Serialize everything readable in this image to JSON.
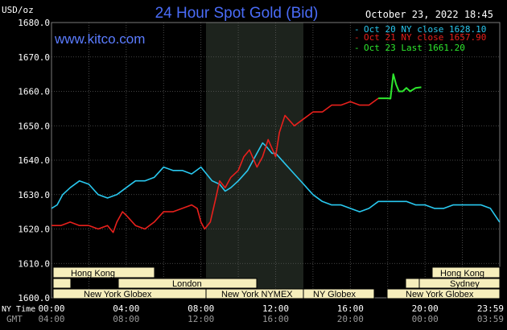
{
  "header": {
    "title": "24 Hour Spot Gold (Bid)",
    "unit": "USD/oz",
    "timestamp": "October 23, 2022 18:45",
    "site": "www.kitco.com"
  },
  "legend": [
    {
      "label": "Oct 20 NY close 1628.10",
      "color": "#29c8ef"
    },
    {
      "label": "Oct 21 NY close 1657.90",
      "color": "#e8201c"
    },
    {
      "label": "Oct 23 Last 1661.20",
      "color": "#2ee82e"
    }
  ],
  "x_axis": {
    "row1_label": "NY Time",
    "row2_label": "GMT",
    "ny_ticks": [
      "00:00",
      "04:00",
      "08:00",
      "12:00",
      "16:00",
      "20:00",
      "23:59"
    ],
    "gmt_ticks": [
      "04:00",
      "08:00",
      "12:00",
      "16:00",
      "20:00",
      "00:00",
      "03:59"
    ]
  },
  "y_axis": {
    "ticks": [
      "1680.0",
      "1670.0",
      "1660.0",
      "1650.0",
      "1640.0",
      "1630.0",
      "1620.0",
      "1610.0",
      "1600.0"
    ]
  },
  "markets": [
    {
      "label": "Hong Kong",
      "row": 1
    },
    {
      "label": "London",
      "row": 2
    },
    {
      "label": "New York Globex",
      "row": 3
    },
    {
      "label": "New York NYMEX",
      "row": 3
    },
    {
      "label": "NY Globex",
      "row": 3
    },
    {
      "label": "Hong Kong",
      "row": 1
    },
    {
      "label": "Sydney",
      "row": 2
    },
    {
      "label": "New York Globex",
      "row": 3
    }
  ],
  "colors": {
    "background": "#000000",
    "grid": "#5a5a5a",
    "shade": "#1d231d",
    "market_bar": "#f6eebc",
    "title": "#4a6cf7"
  },
  "chart_data": {
    "type": "line",
    "title": "24 Hour Spot Gold (Bid)",
    "ylabel": "USD/oz",
    "ylim": [
      1600,
      1680
    ],
    "xlim_hours": [
      0,
      24
    ],
    "x_unit": "hours (NY time)",
    "grid": true,
    "legend_position": "top-right",
    "series": [
      {
        "name": "Oct 20 NY close 1628.10",
        "color": "#29c8ef",
        "x": [
          0,
          0.3,
          0.6,
          1.0,
          1.5,
          2.0,
          2.5,
          3.0,
          3.5,
          4.0,
          4.5,
          5.0,
          5.5,
          6.0,
          6.5,
          7.0,
          7.5,
          8.0,
          8.3,
          8.6,
          9.0,
          9.3,
          9.6,
          10.0,
          10.5,
          11.0,
          11.3,
          11.5,
          11.8,
          12.0,
          12.5,
          13.0,
          13.5,
          14.0,
          14.5,
          15.0,
          15.5,
          16.0,
          16.5,
          17.0,
          17.5,
          18.0,
          18.5,
          19.0,
          19.5,
          20.0,
          20.5,
          21.0,
          21.5,
          22.0,
          22.5,
          23.0,
          23.5,
          23.99
        ],
        "y": [
          1626,
          1627,
          1630,
          1632,
          1634,
          1633,
          1630,
          1629,
          1630,
          1632,
          1634,
          1634,
          1635,
          1638,
          1637,
          1637,
          1636,
          1638,
          1636,
          1634,
          1633,
          1631,
          1632,
          1634,
          1637,
          1642,
          1645,
          1644,
          1642,
          1642,
          1639,
          1636,
          1633,
          1630,
          1628,
          1627,
          1627,
          1626,
          1625,
          1626,
          1628,
          1628,
          1628,
          1628,
          1627,
          1627,
          1626,
          1626,
          1627,
          1627,
          1627,
          1627,
          1626,
          1622
        ]
      },
      {
        "name": "Oct 21 NY close 1657.90",
        "color": "#e8201c",
        "x": [
          0,
          0.5,
          1.0,
          1.5,
          2.0,
          2.5,
          3.0,
          3.3,
          3.5,
          3.8,
          4.0,
          4.5,
          5.0,
          5.5,
          6.0,
          6.5,
          7.0,
          7.5,
          7.8,
          8.0,
          8.2,
          8.5,
          8.8,
          9.0,
          9.3,
          9.6,
          10.0,
          10.3,
          10.6,
          11.0,
          11.3,
          11.6,
          12.0,
          12.2,
          12.5,
          13.0,
          13.5,
          14.0,
          14.5,
          15.0,
          15.5,
          16.0,
          16.5,
          17.0,
          17.5
        ],
        "y": [
          1621,
          1621,
          1622,
          1621,
          1621,
          1620,
          1621,
          1619,
          1622,
          1625,
          1624,
          1621,
          1620,
          1622,
          1625,
          1625,
          1626,
          1627,
          1626,
          1622,
          1620,
          1622,
          1629,
          1634,
          1632,
          1635,
          1637,
          1641,
          1643,
          1638,
          1641,
          1646,
          1641,
          1648,
          1653,
          1650,
          1652,
          1654,
          1654,
          1656,
          1656,
          1657,
          1656,
          1656,
          1658
        ]
      },
      {
        "name": "Oct 23 Last 1661.20",
        "color": "#2ee82e",
        "x": [
          17.5,
          18.0,
          18.15,
          18.3,
          18.45,
          18.6,
          18.8,
          19.0,
          19.2,
          19.5,
          19.8
        ],
        "y": [
          1658,
          1658,
          1657.9,
          1665,
          1662,
          1660,
          1660,
          1661,
          1660,
          1661,
          1661.2
        ]
      }
    ]
  }
}
